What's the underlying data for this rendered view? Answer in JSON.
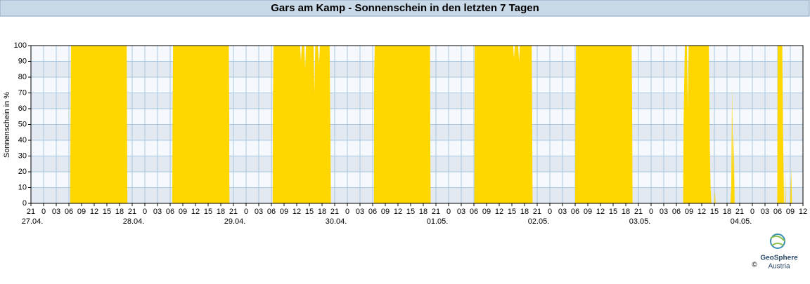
{
  "chart_data": {
    "type": "area",
    "title": "Gars am Kamp - Sonnenschein in den letzten 7 Tagen",
    "y_label": "Sonnenschein in %",
    "color": "#ffd700",
    "grid": true,
    "xlim": [
      0,
      183
    ],
    "ylim": [
      0,
      100
    ],
    "yticks": [
      0,
      10,
      20,
      30,
      40,
      50,
      60,
      70,
      80,
      90,
      100
    ],
    "xticks": [
      {
        "value": 0,
        "label": "21"
      },
      {
        "value": 3,
        "label": "0"
      },
      {
        "value": 6,
        "label": "03"
      },
      {
        "value": 9,
        "label": "06"
      },
      {
        "value": 12,
        "label": "09"
      },
      {
        "value": 15,
        "label": "12"
      },
      {
        "value": 18,
        "label": "15"
      },
      {
        "value": 21,
        "label": "18"
      },
      {
        "value": 24,
        "label": "21"
      },
      {
        "value": 27,
        "label": "0"
      },
      {
        "value": 30,
        "label": "03"
      },
      {
        "value": 33,
        "label": "06"
      },
      {
        "value": 36,
        "label": "09"
      },
      {
        "value": 39,
        "label": "12"
      },
      {
        "value": 42,
        "label": "15"
      },
      {
        "value": 45,
        "label": "18"
      },
      {
        "value": 48,
        "label": "21"
      },
      {
        "value": 51,
        "label": "0"
      },
      {
        "value": 54,
        "label": "03"
      },
      {
        "value": 57,
        "label": "06"
      },
      {
        "value": 60,
        "label": "09"
      },
      {
        "value": 63,
        "label": "12"
      },
      {
        "value": 66,
        "label": "15"
      },
      {
        "value": 69,
        "label": "18"
      },
      {
        "value": 72,
        "label": "21"
      },
      {
        "value": 75,
        "label": "0"
      },
      {
        "value": 78,
        "label": "03"
      },
      {
        "value": 81,
        "label": "06"
      },
      {
        "value": 84,
        "label": "09"
      },
      {
        "value": 87,
        "label": "12"
      },
      {
        "value": 90,
        "label": "15"
      },
      {
        "value": 93,
        "label": "18"
      },
      {
        "value": 96,
        "label": "21"
      },
      {
        "value": 99,
        "label": "0"
      },
      {
        "value": 102,
        "label": "03"
      },
      {
        "value": 105,
        "label": "06"
      },
      {
        "value": 108,
        "label": "09"
      },
      {
        "value": 111,
        "label": "12"
      },
      {
        "value": 114,
        "label": "15"
      },
      {
        "value": 117,
        "label": "18"
      },
      {
        "value": 120,
        "label": "21"
      },
      {
        "value": 123,
        "label": "0"
      },
      {
        "value": 126,
        "label": "03"
      },
      {
        "value": 129,
        "label": "06"
      },
      {
        "value": 132,
        "label": "09"
      },
      {
        "value": 135,
        "label": "12"
      },
      {
        "value": 138,
        "label": "15"
      },
      {
        "value": 141,
        "label": "18"
      },
      {
        "value": 144,
        "label": "21"
      },
      {
        "value": 147,
        "label": "0"
      },
      {
        "value": 150,
        "label": "03"
      },
      {
        "value": 153,
        "label": "06"
      },
      {
        "value": 156,
        "label": "09"
      },
      {
        "value": 159,
        "label": "12"
      },
      {
        "value": 162,
        "label": "15"
      },
      {
        "value": 165,
        "label": "18"
      },
      {
        "value": 168,
        "label": "21"
      },
      {
        "value": 171,
        "label": "0"
      },
      {
        "value": 174,
        "label": "03"
      },
      {
        "value": 177,
        "label": "06"
      },
      {
        "value": 180,
        "label": "09"
      },
      {
        "value": 183,
        "label": "12"
      }
    ],
    "date_labels": [
      {
        "value": 3,
        "label": "27.04."
      },
      {
        "value": 27,
        "label": "28.04."
      },
      {
        "value": 51,
        "label": "29.04."
      },
      {
        "value": 75,
        "label": "30.04."
      },
      {
        "value": 99,
        "label": "01.05."
      },
      {
        "value": 123,
        "label": "02.05."
      },
      {
        "value": 147,
        "label": "03.05."
      },
      {
        "value": 171,
        "label": "04.05."
      }
    ],
    "x": [
      9.3,
      9.35,
      9.5,
      22.7,
      22.75,
      22.85,
      33.5,
      33.55,
      33.7,
      46.9,
      47.0,
      47.05,
      57.3,
      57.35,
      57.5,
      63.8,
      64.0,
      64.2,
      64.8,
      65.0,
      65.2,
      67.0,
      67.2,
      67.4,
      68.0,
      68.3,
      68.5,
      70.8,
      71.0,
      71.1,
      81.3,
      81.35,
      81.5,
      94.6,
      94.65,
      94.75,
      105.1,
      105.2,
      114.3,
      114.5,
      114.7,
      115.5,
      115.7,
      115.9,
      118.7,
      118.8,
      118.9,
      129.0,
      129.05,
      129.2,
      142.4,
      142.5,
      142.6,
      154.6,
      154.7,
      155.0,
      155.5,
      155.7,
      155.9,
      160.7,
      160.9,
      161.1,
      161.3,
      162.0,
      162.1,
      162.3,
      165.8,
      166.0,
      166.2,
      166.4,
      166.6,
      166.8,
      176.9,
      177.0,
      178.1,
      178.3,
      178.5,
      178.7,
      178.8,
      178.9,
      180.0,
      180.2,
      180.4,
      183
    ],
    "values": [
      0,
      35,
      100,
      100,
      70,
      0,
      0,
      45,
      100,
      100,
      55,
      0,
      0,
      60,
      100,
      100,
      90,
      100,
      100,
      85,
      100,
      100,
      70,
      100,
      100,
      88,
      100,
      100,
      40,
      0,
      0,
      80,
      100,
      100,
      45,
      0,
      0,
      100,
      100,
      92,
      100,
      100,
      90,
      100,
      100,
      60,
      0,
      0,
      50,
      100,
      100,
      65,
      0,
      0,
      50,
      100,
      100,
      60,
      100,
      100,
      40,
      10,
      0,
      0,
      8,
      0,
      0,
      10,
      74,
      15,
      45,
      0,
      0,
      100,
      100,
      40,
      0,
      0,
      20,
      0,
      0,
      22,
      0,
      0
    ]
  },
  "logo": {
    "name": "GeoSphere",
    "sub": "Austria",
    "copyright": "©"
  }
}
